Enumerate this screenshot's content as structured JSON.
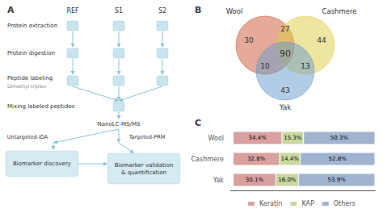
{
  "chart_data": [
    {
      "type": "flowchart",
      "title": "A",
      "categories": [
        "REF",
        "S1",
        "S2"
      ],
      "annotations": [
        "Protein extraction",
        "Protein digestion",
        "Peptide labeling",
        "Dimethyl triplex",
        "Mixing labeled peptides",
        "NanoLC-MS/MS",
        "Untargeted-IDA",
        "Targeted-PRM",
        "Biomarker discovery",
        "Biomarker validation\n& quantification"
      ],
      "color": "#88C4D8"
    },
    {
      "type": "venn",
      "title": "B",
      "series": [
        {
          "name": "Wool",
          "color": "#CC5533"
        },
        {
          "name": "Cashmere",
          "color": "#DDCC44"
        },
        {
          "name": "Yak",
          "color": "#6699CC"
        }
      ],
      "values": [
        30,
        44,
        43,
        27,
        10,
        13,
        90
      ]
    },
    {
      "type": "bar",
      "title": "C",
      "orientation": "horizontal",
      "stacked": true,
      "data_labels": true,
      "legend": "bottom",
      "tick_labels": "y",
      "grid": false,
      "categories": [
        "Wool",
        "Cashmere",
        "Yak"
      ],
      "series": [
        {
          "name": "Keratin",
          "color": "#D9A0A0",
          "values": [
            34.4,
            32.8,
            30.1
          ],
          "value_labels": [
            "34.4%",
            "32.8%",
            "30.1%"
          ]
        },
        {
          "name": "KAP",
          "color": "#C8D8A0",
          "values": [
            15.3,
            14.4,
            16.0
          ],
          "value_labels": [
            "15.3%",
            "14.4%",
            "16.0%"
          ]
        },
        {
          "name": "Others",
          "color": "#A0B4D0",
          "values": [
            50.3,
            52.8,
            53.9
          ],
          "value_labels": [
            "50.3%",
            "52.8%",
            "53.9%"
          ]
        }
      ],
      "xlim": [
        -2,
        100
      ],
      "xticks": []
    }
  ]
}
